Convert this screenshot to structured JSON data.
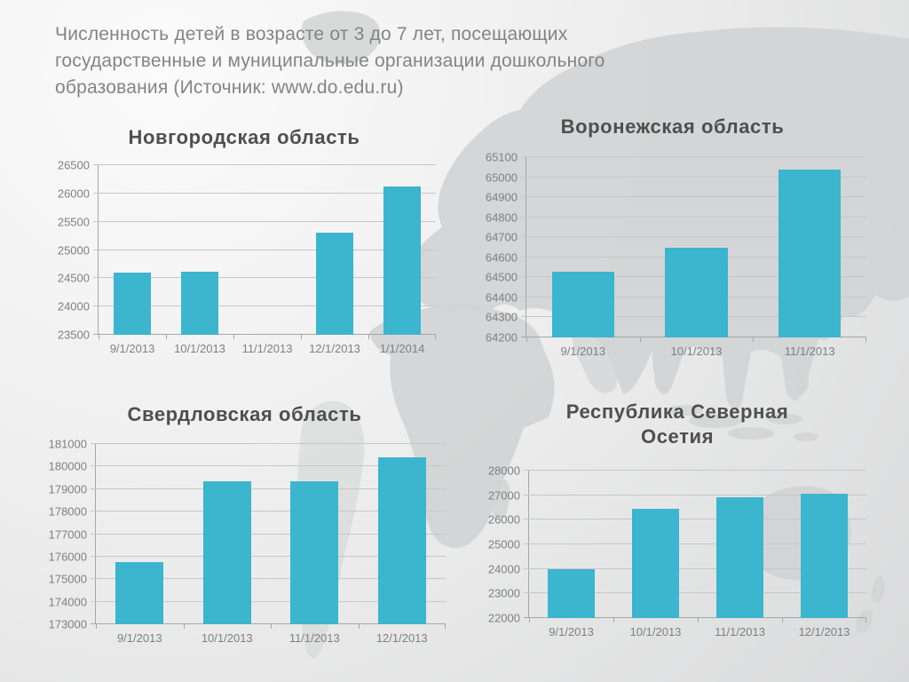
{
  "slide": {
    "title": "Численность детей в возрасте от 3 до 7 лет, посещающих государственные и муниципальные организации дошкольного образования (Источник: www.do.edu.ru)"
  },
  "colors": {
    "bar": "#3CB5CE",
    "gridline": "#c6c7c8",
    "axis_line": "#a5a6a7",
    "axis_text": "#7f8081",
    "chart_title": "#4f4f4f",
    "slide_title": "#848484",
    "map_fill": "#d2d3d4",
    "bg_light": "#fbfbfb",
    "bg_mid": "#ececec",
    "bg_dark": "#d9dadb"
  },
  "chart_data": [
    {
      "type": "bar",
      "title": "Новгородская область",
      "categories": [
        "9/1/2013",
        "10/1/2013",
        "11/1/2013",
        "12/1/2013",
        "1/1/2014"
      ],
      "values": [
        24600,
        24620,
        null,
        25300,
        26130
      ],
      "ylim": [
        23500,
        26500
      ],
      "ytick_step": 500,
      "grid": true,
      "legend": "none"
    },
    {
      "type": "bar",
      "title": "Воронежская область",
      "categories": [
        "9/1/2013",
        "10/1/2013",
        "11/1/2013"
      ],
      "values": [
        64530,
        64650,
        65040
      ],
      "ylim": [
        64200,
        65100
      ],
      "ytick_step": 100,
      "grid": true,
      "legend": "none"
    },
    {
      "type": "bar",
      "title": "Свердловская область",
      "categories": [
        "9/1/2013",
        "10/1/2013",
        "11/1/2013",
        "12/1/2013"
      ],
      "values": [
        175750,
        179350,
        179350,
        180400
      ],
      "ylim": [
        173000,
        181000
      ],
      "ytick_step": 1000,
      "grid": true,
      "legend": "none"
    },
    {
      "type": "bar",
      "title": "Республика Северная Осетия",
      "categories": [
        "9/1/2013",
        "10/1/2013",
        "11/1/2013",
        "12/1/2013"
      ],
      "values": [
        24000,
        26450,
        26900,
        27050
      ],
      "ylim": [
        22000,
        28000
      ],
      "ytick_step": 1000,
      "grid": true,
      "legend": "none"
    }
  ]
}
